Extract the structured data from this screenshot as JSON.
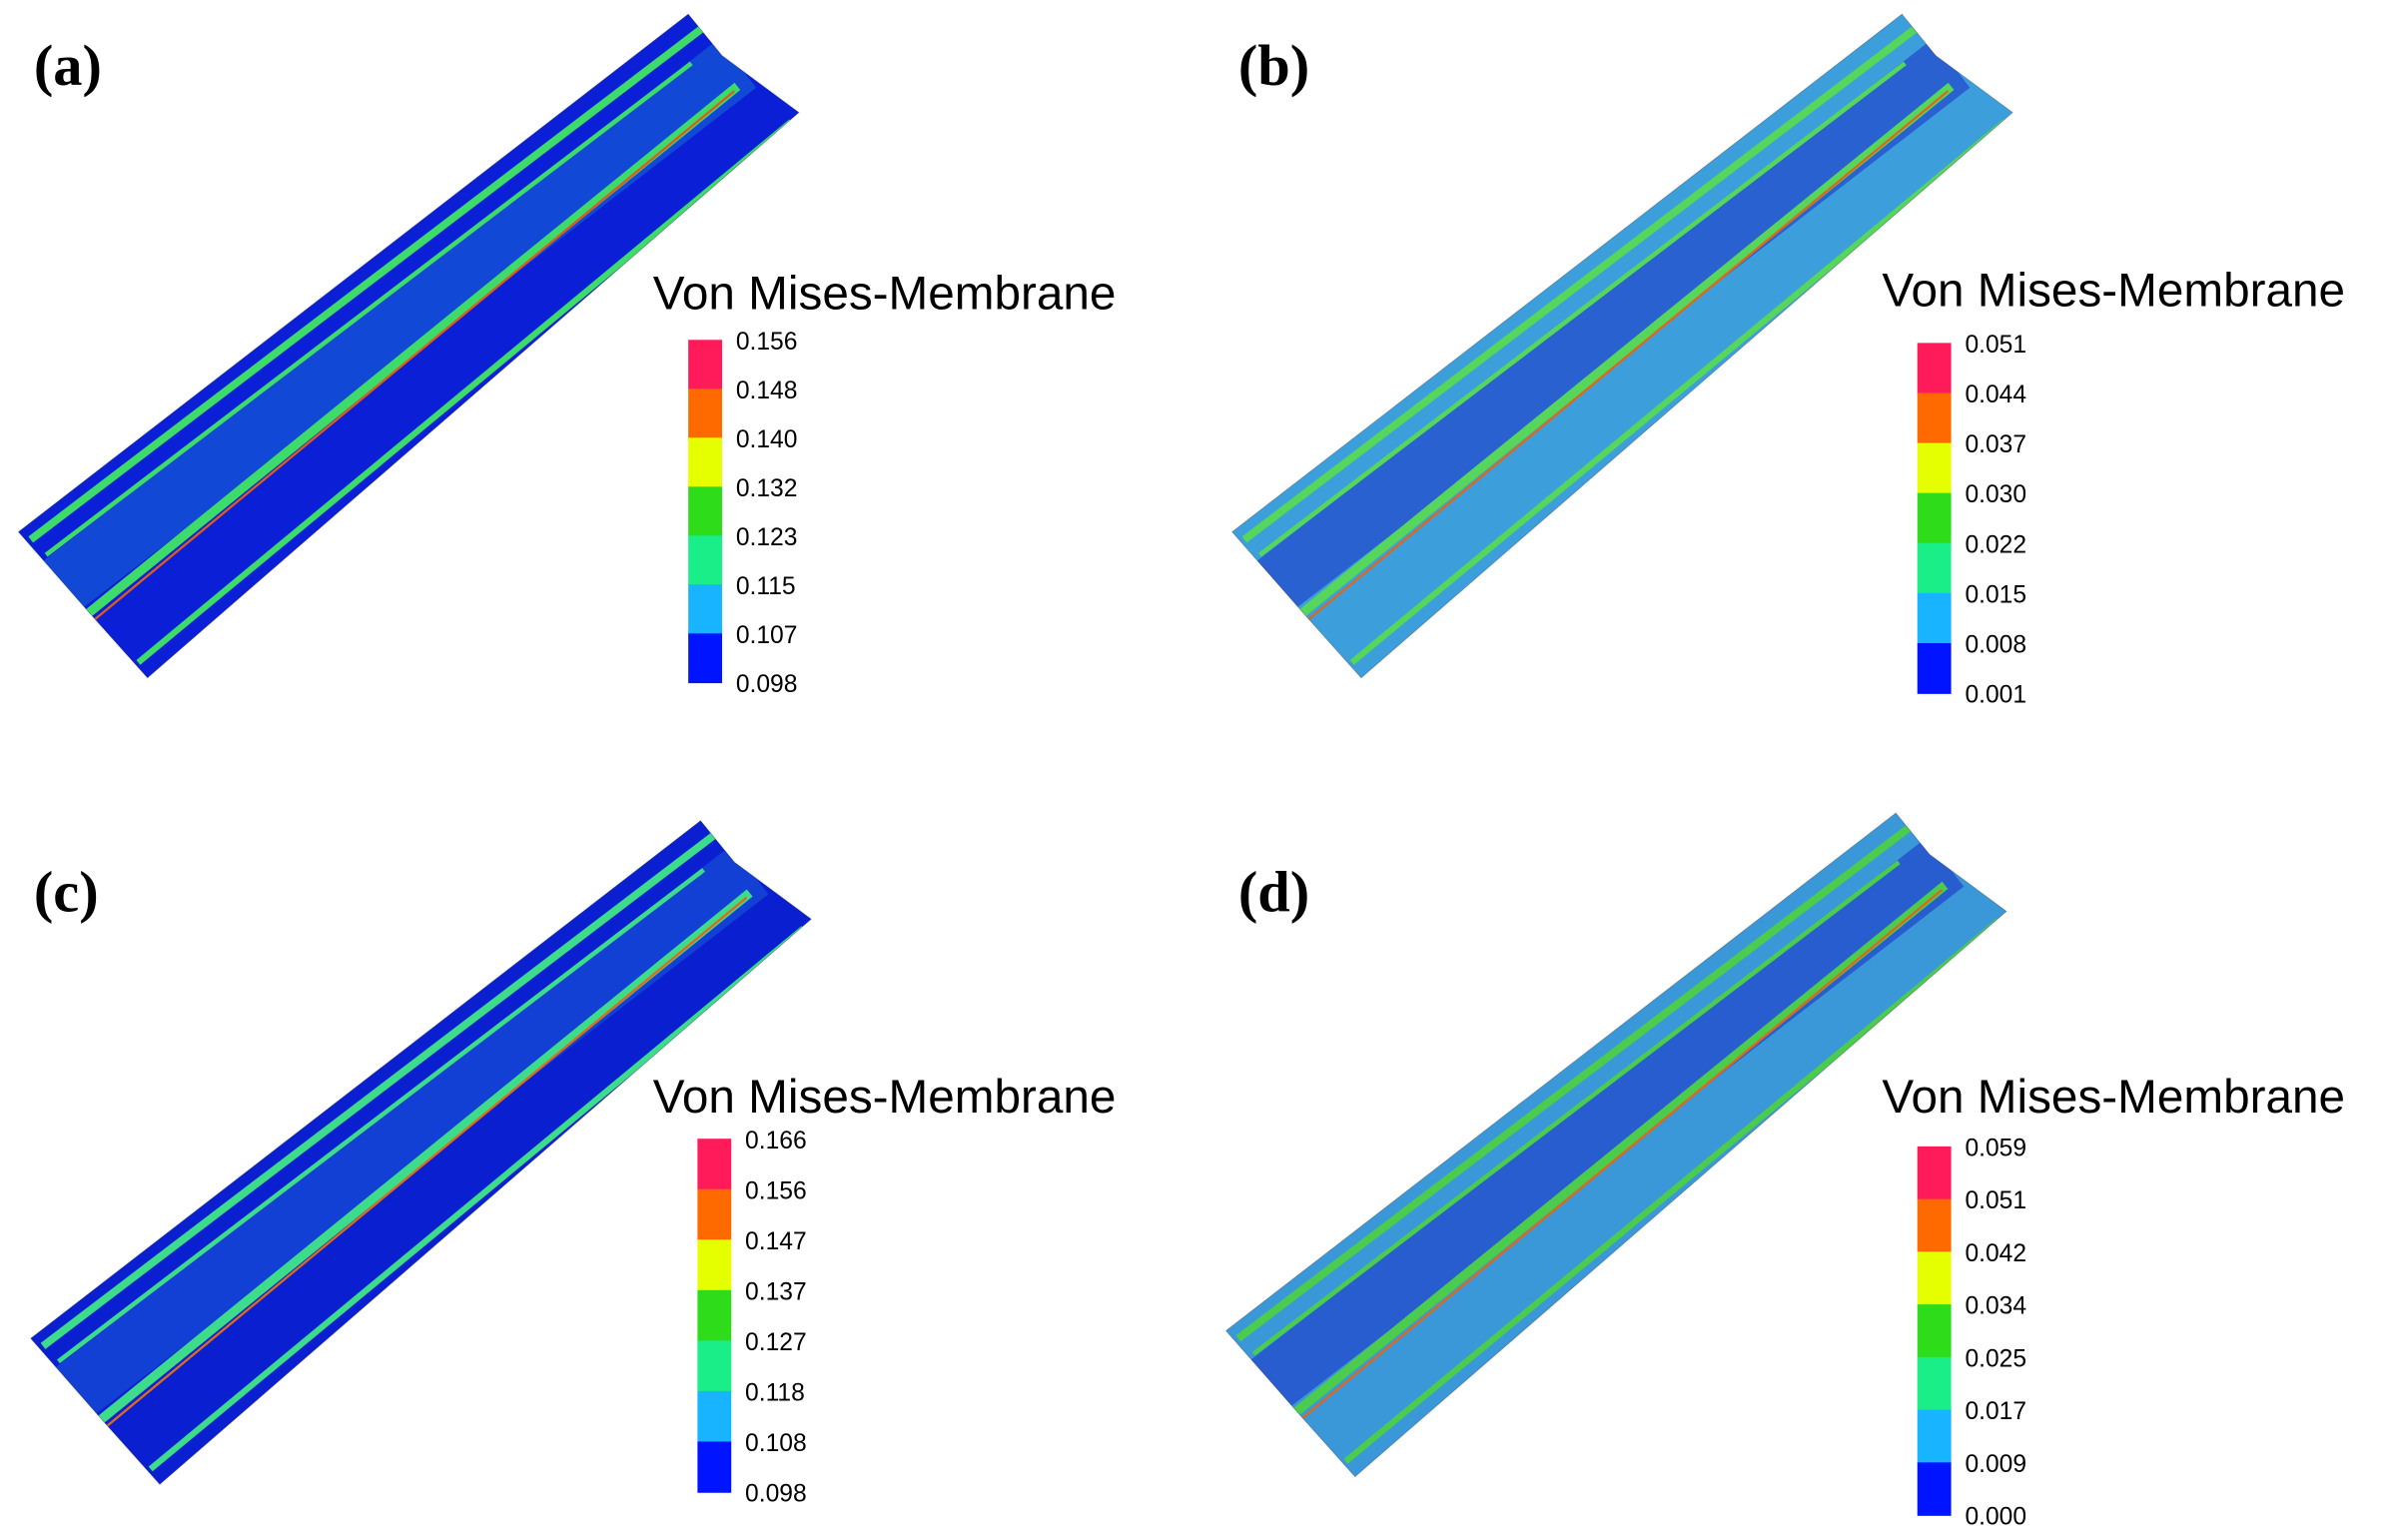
{
  "panels": [
    {
      "label": "(a)",
      "legend": {
        "title": "Von Mises-Membrane",
        "ticks": [
          "0.156",
          "0.148",
          "0.140",
          "0.132",
          "0.123",
          "0.115",
          "0.107",
          "0.098"
        ]
      }
    },
    {
      "label": "(b)",
      "legend": {
        "title": "Von Mises-Membrane",
        "ticks": [
          "0.051",
          "0.044",
          "0.037",
          "0.030",
          "0.022",
          "0.015",
          "0.008",
          "0.001"
        ]
      }
    },
    {
      "label": "(c)",
      "legend": {
        "title": "Von Mises-Membrane",
        "ticks": [
          "0.166",
          "0.156",
          "0.147",
          "0.137",
          "0.127",
          "0.118",
          "0.108",
          "0.098"
        ]
      }
    },
    {
      "label": "(d)",
      "legend": {
        "title": "Von Mises-Membrane",
        "ticks": [
          "0.059",
          "0.051",
          "0.042",
          "0.034",
          "0.025",
          "0.017",
          "0.009",
          "0.000"
        ]
      }
    }
  ]
}
